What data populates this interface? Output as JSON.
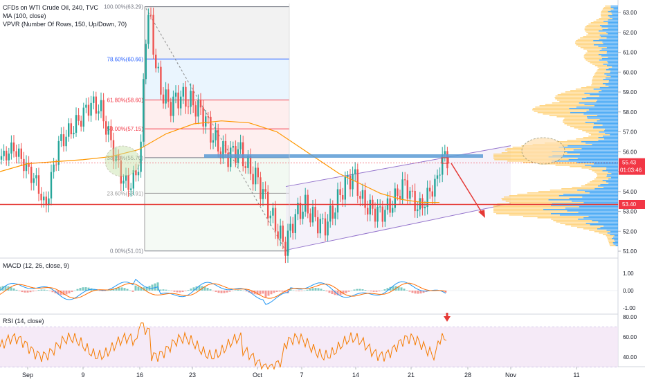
{
  "legend": {
    "symbol": "CFDs on WTI Crude Oil, 240, TVC",
    "ma": "MA (100, close)",
    "vpvr": "VPVR (Number Of Rows, 150, Up/Down, 70)"
  },
  "fib": [
    {
      "level": 63.29,
      "label": "100.00%(63.29)",
      "color": "#787b86"
    },
    {
      "level": 60.66,
      "label": "78.60%(60.66)",
      "color": "#2962ff"
    },
    {
      "level": 58.6,
      "label": "61.80%(58.60)",
      "color": "#f23645"
    },
    {
      "level": 57.15,
      "label": "50.00%(57.15)",
      "color": "#f23645"
    },
    {
      "level": 55.7,
      "label": "38.20%(55.70)",
      "color": "#787b86"
    },
    {
      "level": 53.91,
      "label": "23.60%(53.91)",
      "color": "#9e9e9e"
    },
    {
      "level": 51.01,
      "label": "0.00%(51.01)",
      "color": "#787b86"
    }
  ],
  "price_axis": [
    "63.00",
    "62.00",
    "61.00",
    "60.00",
    "59.00",
    "58.00",
    "57.00",
    "56.00",
    "55.00",
    "54.00",
    "53.00",
    "52.00",
    "51.00"
  ],
  "current_price": {
    "value": "55.43",
    "countdown": "01:03:46",
    "color": "#f23645"
  },
  "support_price": {
    "value": "53.40",
    "color": "#f23645"
  },
  "macd": {
    "title": "MACD (12, 26, close, 9)",
    "axis": [
      "1.00",
      "0.00",
      "-1.00"
    ]
  },
  "rsi": {
    "title": "RSI (14, close)",
    "axis": [
      "80.00",
      "60.00",
      "40.00"
    ]
  },
  "time_axis": [
    "Sep",
    "9",
    "16",
    "23",
    "Oct",
    "7",
    "14",
    "21",
    "28",
    "Nov",
    "11"
  ],
  "colors": {
    "up": "#26a69a",
    "down": "#ef5350",
    "ma": "#ff9800",
    "macd": "#2196f3",
    "signal": "#ff6d00",
    "rsi": "#f57c00",
    "vpvr_up": "#2196f3",
    "vpvr_down": "#ffcc66"
  }
}
